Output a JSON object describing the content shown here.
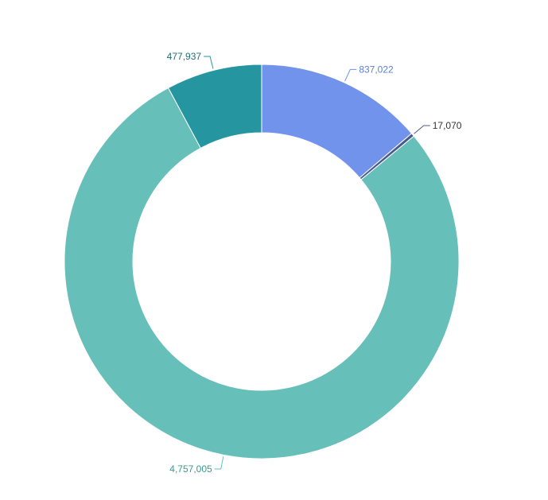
{
  "chart_data": {
    "type": "pie",
    "donut": true,
    "start_angle_deg": 0,
    "direction": "clockwise",
    "slices": [
      {
        "value": 837022,
        "label": "837,022",
        "color": "#7293ec",
        "label_color": "#5b7fd4"
      },
      {
        "value": 17070,
        "label": "17,070",
        "color": "#4a5a8c",
        "label_color": "#333333"
      },
      {
        "value": 4757005,
        "label": "4,757,005",
        "color": "#66bfb8",
        "label_color": "#3e9690"
      },
      {
        "value": 477937,
        "label": "477,937",
        "color": "#2596a0",
        "label_color": "#1f6f78"
      }
    ],
    "legend": "none",
    "data_labels": "outside"
  }
}
